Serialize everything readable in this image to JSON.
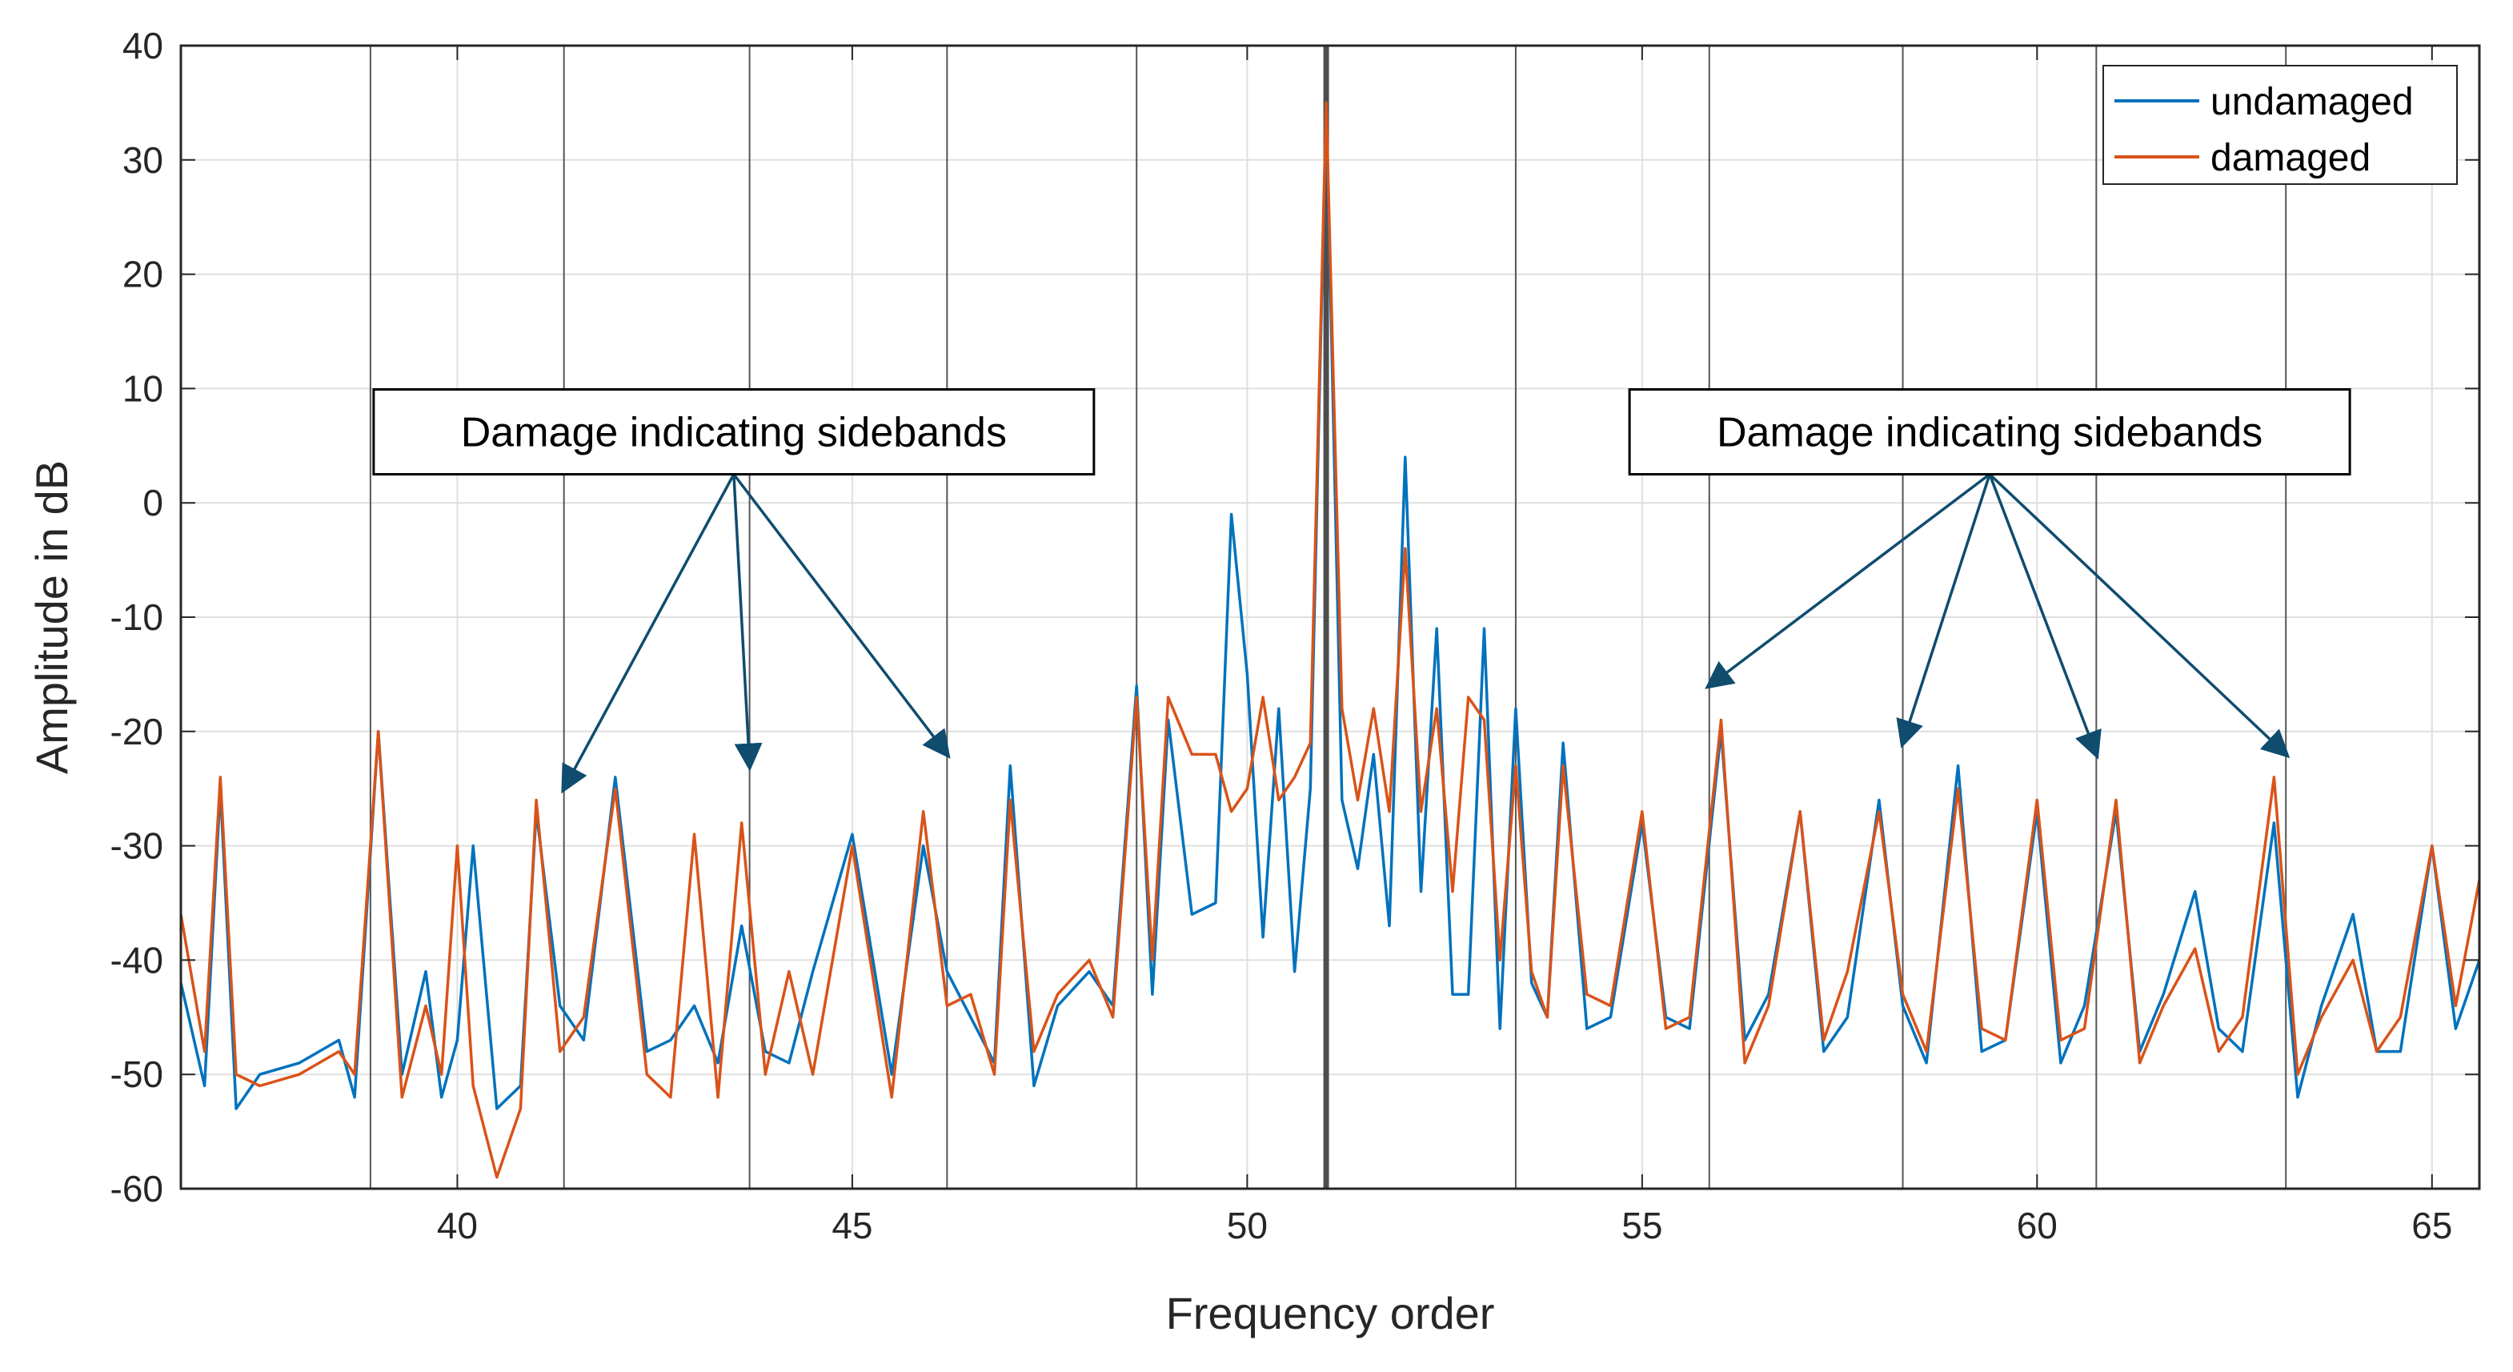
{
  "chart_data": {
    "type": "line",
    "title": "",
    "xlabel": "Frequency order",
    "ylabel": "Amplitude in dB",
    "xlim": [
      36.5,
      65.6
    ],
    "ylim": [
      -60,
      40
    ],
    "x_ticks": [
      40,
      45,
      50,
      55,
      60,
      65
    ],
    "x_tick_labels": [
      "40",
      "45",
      "50",
      "55",
      "60",
      "65"
    ],
    "y_ticks": [
      -60,
      -50,
      -40,
      -30,
      -20,
      -10,
      0,
      10,
      20,
      30,
      40
    ],
    "y_tick_labels": [
      "-60",
      "-50",
      "-40",
      "-30",
      "-20",
      "-10",
      "0",
      "10",
      "20",
      "30",
      "40"
    ],
    "grid": true,
    "legend_position": "top-right",
    "mesh_lines": [
      38.9,
      41.35,
      43.7,
      46.2,
      48.6,
      53.4,
      55.85,
      58.3,
      60.75,
      63.15
    ],
    "center_line": 51,
    "series": [
      {
        "name": "undamaged",
        "color": "#0072BD",
        "x": [
          36.5,
          36.8,
          37.0,
          37.2,
          37.5,
          38.0,
          38.5,
          38.7,
          39.0,
          39.3,
          39.6,
          39.8,
          40.0,
          40.2,
          40.5,
          40.8,
          41.0,
          41.3,
          41.6,
          42.0,
          42.4,
          42.7,
          43.0,
          43.3,
          43.6,
          43.9,
          44.2,
          44.5,
          45.0,
          45.5,
          45.9,
          46.2,
          46.5,
          46.8,
          47.0,
          47.3,
          47.6,
          48.0,
          48.3,
          48.6,
          48.8,
          49.0,
          49.3,
          49.6,
          49.8,
          50.0,
          50.2,
          50.4,
          50.6,
          50.8,
          51.0,
          51.2,
          51.4,
          51.6,
          51.8,
          52.0,
          52.2,
          52.4,
          52.6,
          52.8,
          53.0,
          53.2,
          53.4,
          53.6,
          53.8,
          54.0,
          54.3,
          54.6,
          55.0,
          55.3,
          55.6,
          56.0,
          56.3,
          56.6,
          57.0,
          57.3,
          57.6,
          58.0,
          58.3,
          58.6,
          59.0,
          59.3,
          59.6,
          60.0,
          60.3,
          60.6,
          61.0,
          61.3,
          61.6,
          62.0,
          62.3,
          62.6,
          63.0,
          63.3,
          63.6,
          64.0,
          64.3,
          64.6,
          65.0,
          65.3,
          65.6
        ],
        "values": [
          -42,
          -51,
          -25,
          -53,
          -50,
          -49,
          -47,
          -52,
          -20,
          -50,
          -41,
          -52,
          -47,
          -30,
          -53,
          -51,
          -27,
          -44,
          -47,
          -24,
          -48,
          -47,
          -44,
          -49,
          -37,
          -48,
          -49,
          -41,
          -29,
          -50,
          -30,
          -41,
          -45,
          -49,
          -23,
          -51,
          -44,
          -41,
          -44,
          -16,
          -43,
          -19,
          -36,
          -35,
          -1,
          -15,
          -38,
          -18,
          -41,
          -25,
          35,
          -26,
          -32,
          -22,
          -37,
          4,
          -34,
          -11,
          -43,
          -43,
          -11,
          -46,
          -18,
          -42,
          -45,
          -21,
          -46,
          -45,
          -28,
          -45,
          -46,
          -20,
          -47,
          -43,
          -27,
          -48,
          -45,
          -26,
          -44,
          -49,
          -23,
          -48,
          -47,
          -27,
          -49,
          -44,
          -27,
          -48,
          -43,
          -34,
          -46,
          -48,
          -28,
          -52,
          -44,
          -36,
          -48,
          -48,
          -30,
          -46,
          -40
        ]
      },
      {
        "name": "damaged",
        "color": "#D95319",
        "x": [
          36.5,
          36.8,
          37.0,
          37.2,
          37.5,
          38.0,
          38.5,
          38.7,
          39.0,
          39.3,
          39.6,
          39.8,
          40.0,
          40.2,
          40.5,
          40.8,
          41.0,
          41.3,
          41.6,
          42.0,
          42.4,
          42.7,
          43.0,
          43.3,
          43.6,
          43.9,
          44.2,
          44.5,
          45.0,
          45.5,
          45.9,
          46.2,
          46.5,
          46.8,
          47.0,
          47.3,
          47.6,
          48.0,
          48.3,
          48.6,
          48.8,
          49.0,
          49.3,
          49.6,
          49.8,
          50.0,
          50.2,
          50.4,
          50.6,
          50.8,
          51.0,
          51.2,
          51.4,
          51.6,
          51.8,
          52.0,
          52.2,
          52.4,
          52.6,
          52.8,
          53.0,
          53.2,
          53.4,
          53.6,
          53.8,
          54.0,
          54.3,
          54.6,
          55.0,
          55.3,
          55.6,
          56.0,
          56.3,
          56.6,
          57.0,
          57.3,
          57.6,
          58.0,
          58.3,
          58.6,
          59.0,
          59.3,
          59.6,
          60.0,
          60.3,
          60.6,
          61.0,
          61.3,
          61.6,
          62.0,
          62.3,
          62.6,
          63.0,
          63.3,
          63.6,
          64.0,
          64.3,
          64.6,
          65.0,
          65.3,
          65.6
        ],
        "values": [
          -36,
          -48,
          -24,
          -50,
          -51,
          -50,
          -48,
          -50,
          -20,
          -52,
          -44,
          -50,
          -30,
          -51,
          -59,
          -53,
          -26,
          -48,
          -45,
          -25,
          -50,
          -52,
          -29,
          -52,
          -28,
          -50,
          -41,
          -50,
          -30,
          -52,
          -27,
          -44,
          -43,
          -50,
          -26,
          -48,
          -43,
          -40,
          -45,
          -17,
          -40,
          -17,
          -22,
          -22,
          -27,
          -25,
          -17,
          -26,
          -24,
          -21,
          35,
          -18,
          -26,
          -18,
          -27,
          -4,
          -27,
          -18,
          -34,
          -17,
          -19,
          -40,
          -23,
          -41,
          -45,
          -23,
          -43,
          -44,
          -27,
          -46,
          -45,
          -19,
          -49,
          -44,
          -27,
          -47,
          -41,
          -27,
          -43,
          -48,
          -25,
          -46,
          -47,
          -26,
          -47,
          -46,
          -26,
          -49,
          -44,
          -39,
          -48,
          -45,
          -24,
          -50,
          -45,
          -40,
          -48,
          -45,
          -30,
          -44,
          -33
        ]
      }
    ],
    "annotations": [
      {
        "text": "Damage indicating sidebands",
        "anchor": [
          43.5,
          2.5
        ],
        "targets": [
          [
            41.35,
            -25
          ],
          [
            43.7,
            -23
          ],
          [
            46.2,
            -22
          ]
        ]
      },
      {
        "text": "Damage indicating sidebands",
        "anchor": [
          59.4,
          2.5
        ],
        "targets": [
          [
            55.85,
            -16
          ],
          [
            58.3,
            -21
          ],
          [
            60.75,
            -22
          ],
          [
            63.15,
            -22
          ]
        ]
      }
    ]
  }
}
